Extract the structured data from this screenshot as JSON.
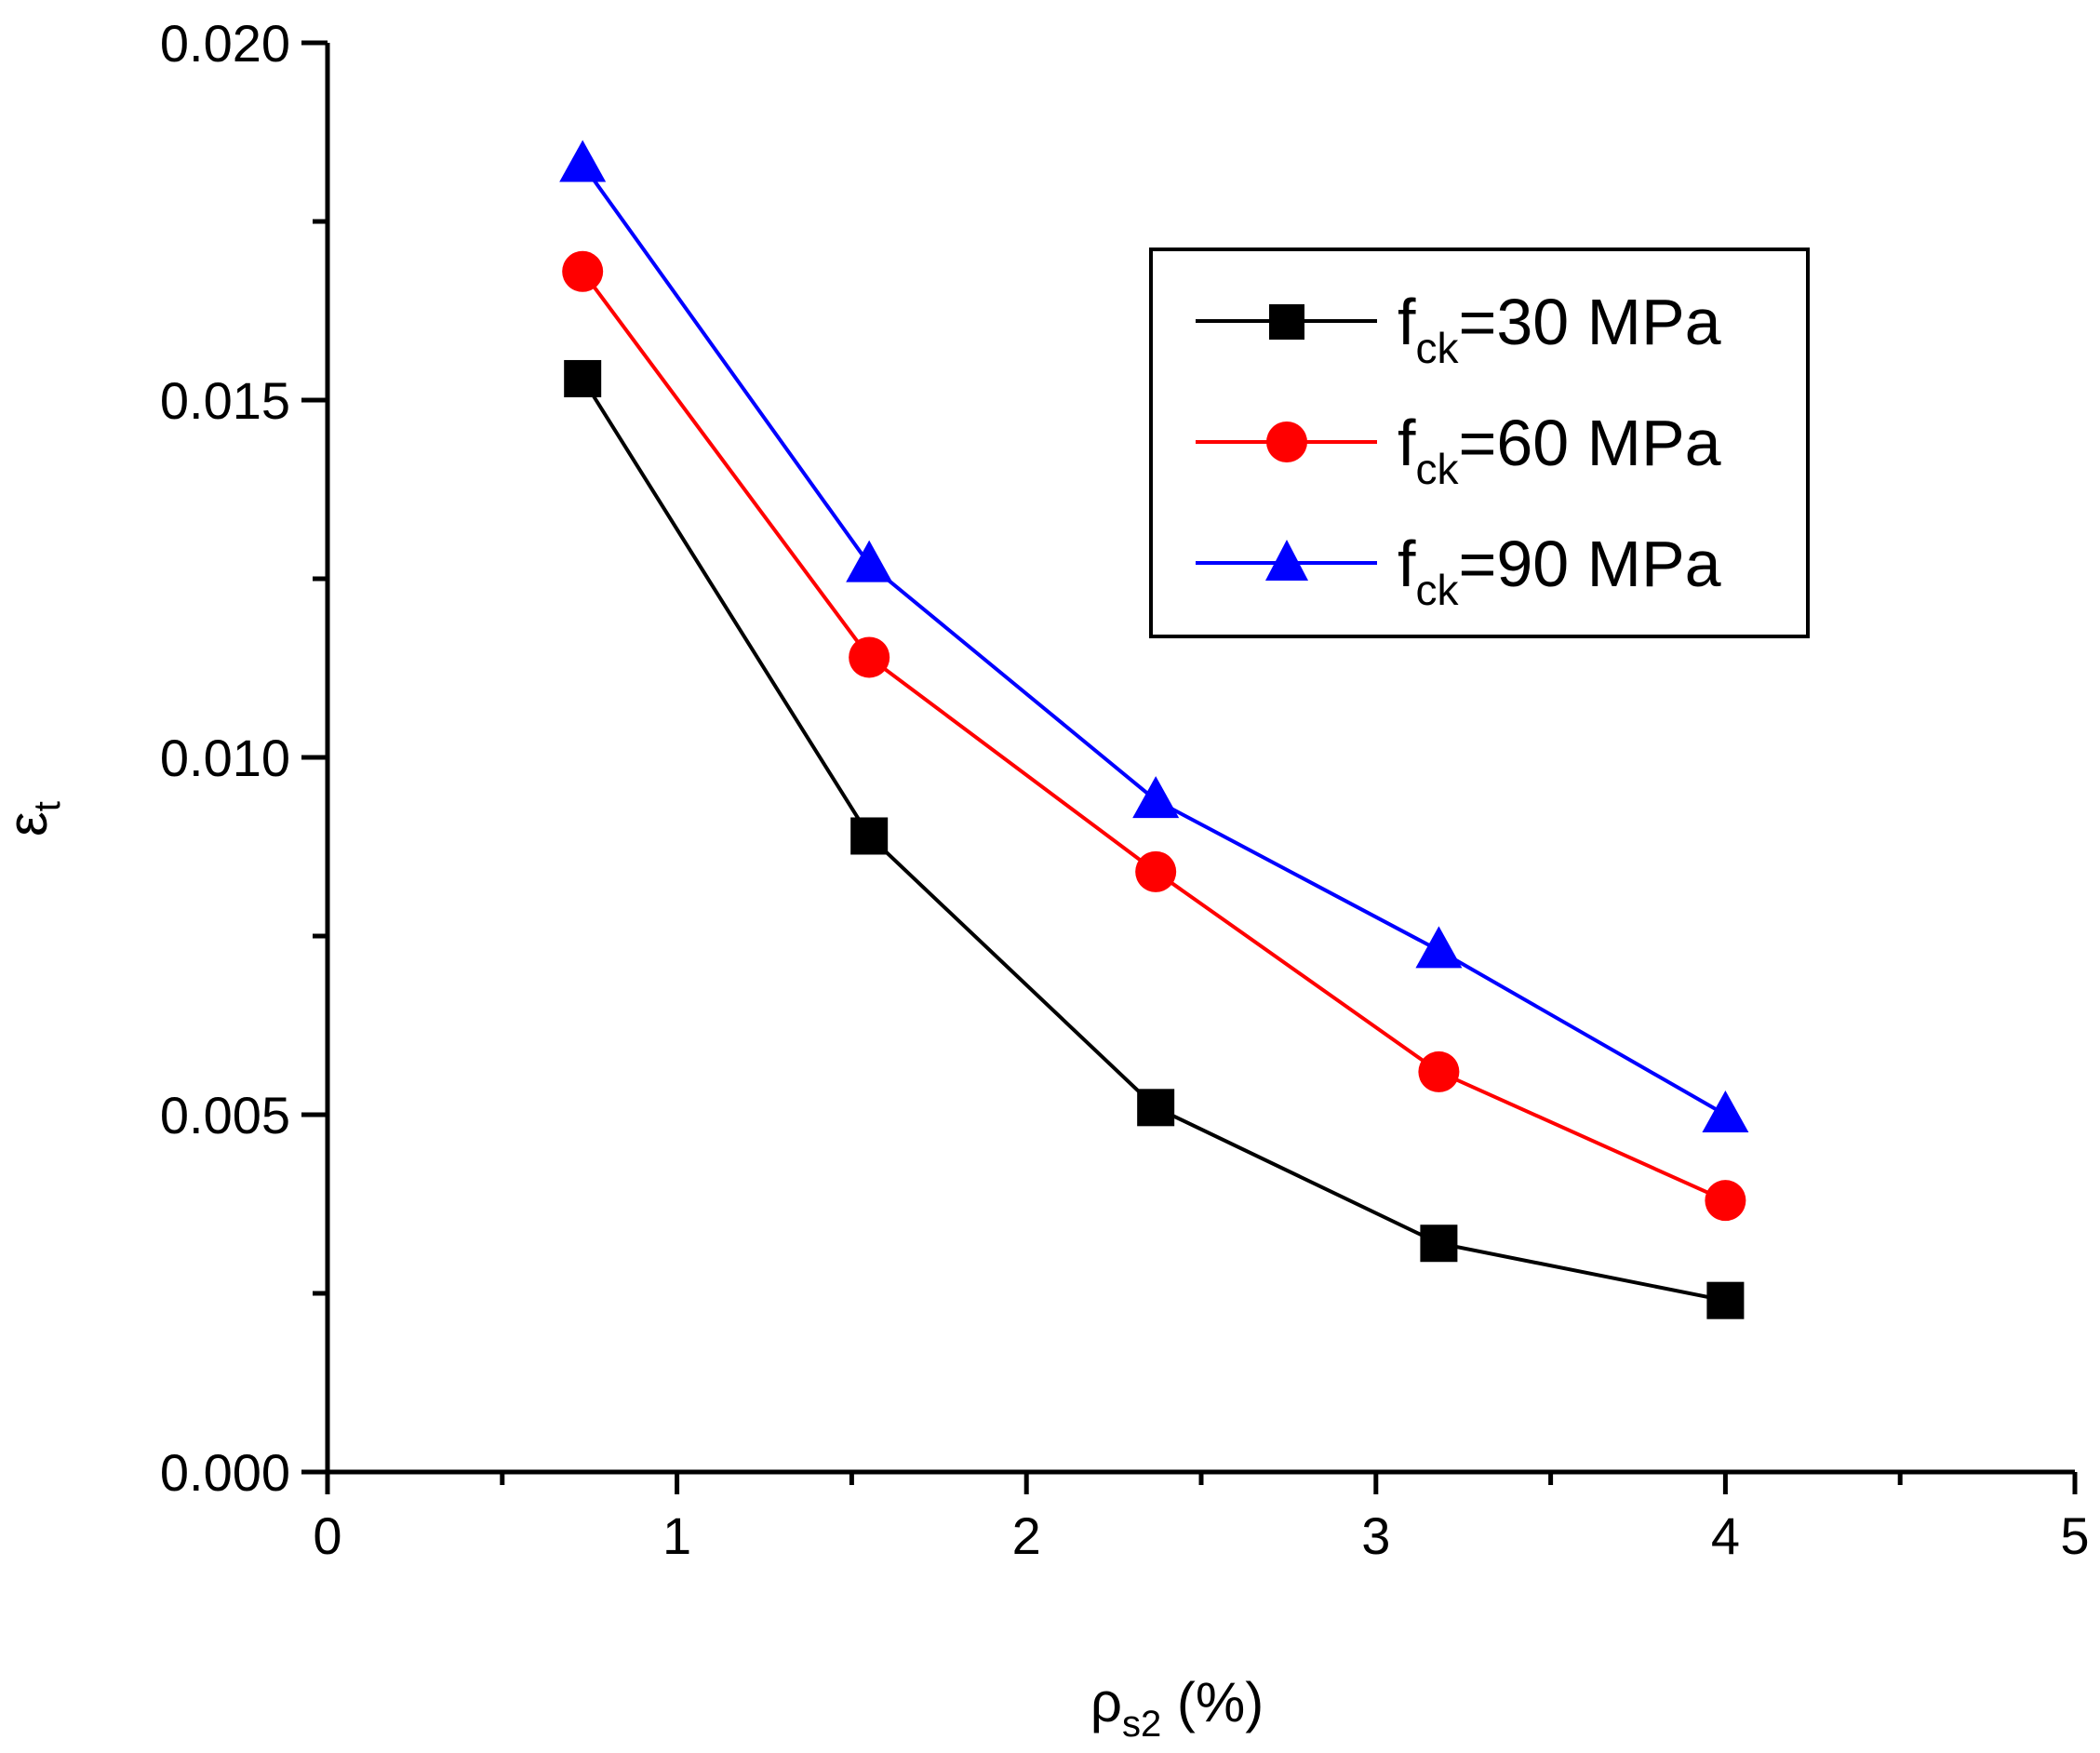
{
  "chart_data": {
    "type": "line",
    "title": "",
    "xlabel": {
      "main": "ρ",
      "sub": "s2",
      "suffix": " (%)"
    },
    "ylabel": {
      "main": "ε",
      "sub": "t"
    },
    "xlim": [
      0,
      5
    ],
    "ylim": [
      0,
      0.02
    ],
    "xticks": [
      "0",
      "1",
      "2",
      "3",
      "4",
      "5"
    ],
    "yticks": [
      "0.000",
      "0.005",
      "0.010",
      "0.015",
      "0.020"
    ],
    "grid": false,
    "legend_position": "top-right",
    "series": [
      {
        "name": {
          "main": "f",
          "sub": "ck",
          "suffix": "=30 MPa"
        },
        "color": "#000000",
        "marker": "square",
        "x": [
          0.73,
          1.55,
          2.37,
          3.18,
          4.0
        ],
        "y": [
          0.0153,
          0.0089,
          0.0051,
          0.0032,
          0.0024
        ]
      },
      {
        "name": {
          "main": "f",
          "sub": "ck",
          "suffix": "=60 MPa"
        },
        "color": "#ff0000",
        "marker": "circle",
        "x": [
          0.73,
          1.55,
          2.37,
          3.18,
          4.0
        ],
        "y": [
          0.0168,
          0.0114,
          0.0084,
          0.0056,
          0.0038
        ]
      },
      {
        "name": {
          "main": "f",
          "sub": "ck",
          "suffix": "=90 MPa"
        },
        "color": "#0000ff",
        "marker": "triangle",
        "x": [
          0.73,
          1.55,
          2.37,
          3.18,
          4.0
        ],
        "y": [
          0.0183,
          0.0127,
          0.0094,
          0.0073,
          0.005
        ]
      }
    ]
  }
}
